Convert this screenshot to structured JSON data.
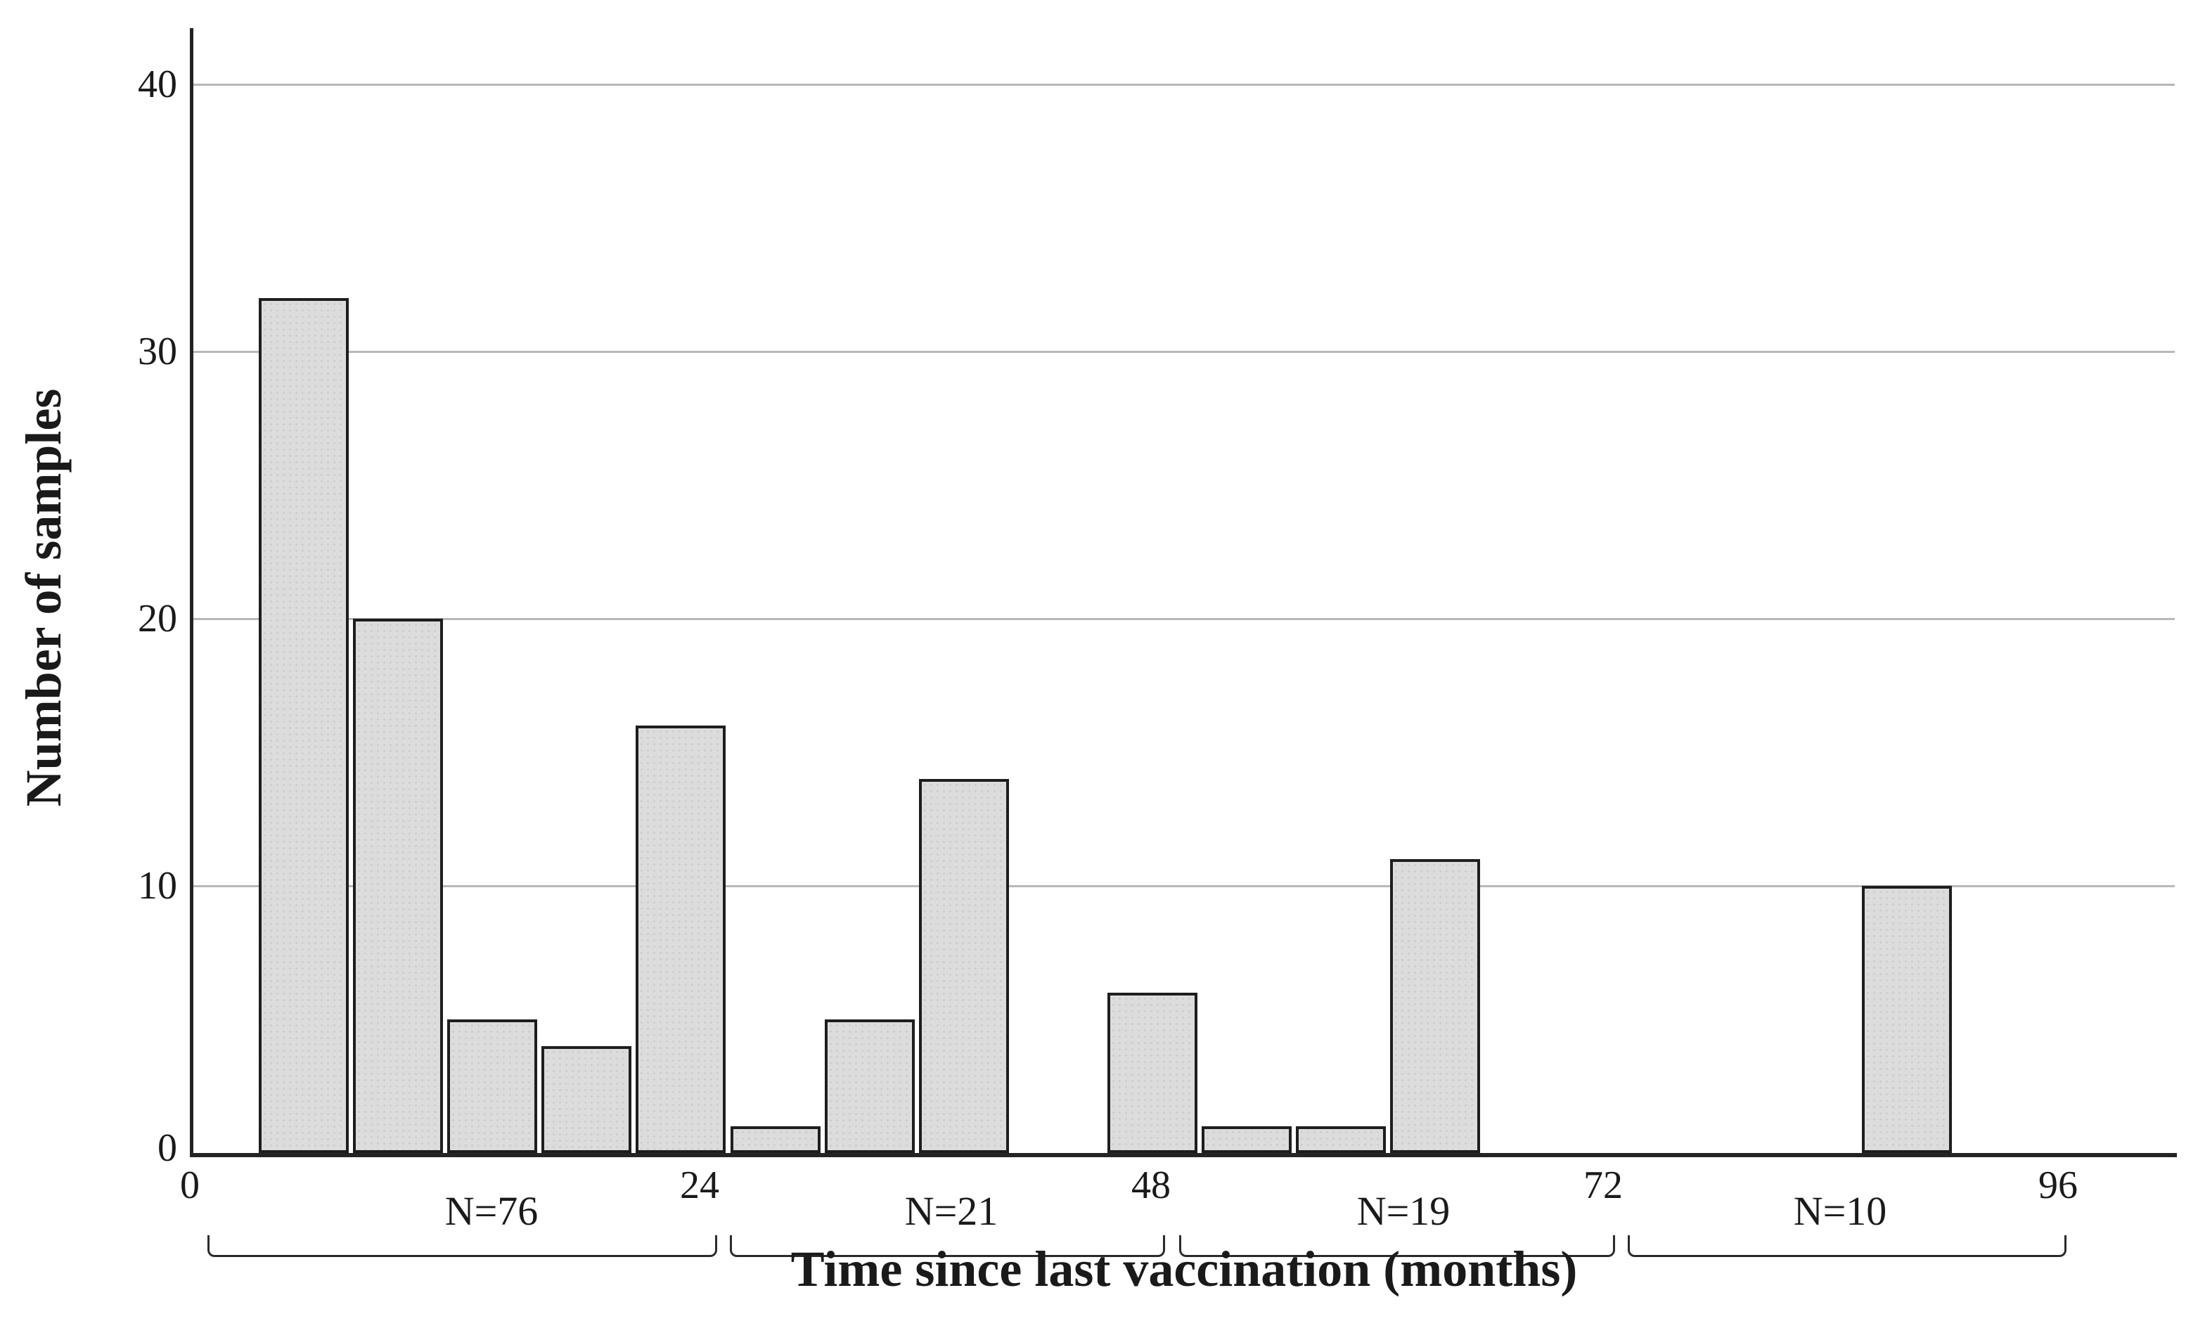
{
  "chart_data": {
    "type": "bar",
    "title": "",
    "xlabel": "Time since last vaccination (months)",
    "ylabel": "Number of samples",
    "x_ticks": [
      "0",
      "24",
      "48",
      "72",
      "96"
    ],
    "y_ticks": [
      "0",
      "10",
      "20",
      "30",
      "40"
    ],
    "ylim": [
      0,
      42
    ],
    "xlim_months": [
      0,
      96
    ],
    "grid": true,
    "legend": "none",
    "colors": {
      "bar_fill": "#dbdcdb",
      "bar_border": "#1e1e1e",
      "grid_color": "#b7b7b7",
      "axis_color": "#242424",
      "text_color": "#1a1a1a",
      "background": "#ffffff"
    },
    "bars": [
      {
        "slot": 0,
        "months_approx": "3.4-8.1",
        "value": 32
      },
      {
        "slot": 1,
        "months_approx": "8.3-12.9",
        "value": 20
      },
      {
        "slot": 2,
        "months_approx": "13.1-17.8",
        "value": 5
      },
      {
        "slot": 3,
        "months_approx": "18.0-22.6",
        "value": 4
      },
      {
        "slot": 4,
        "months_approx": "22.8-27.5",
        "value": 16
      },
      {
        "slot": 5,
        "months_approx": "27.7-32.3",
        "value": 1
      },
      {
        "slot": 6,
        "months_approx": "32.5-37.2",
        "value": 5
      },
      {
        "slot": 7,
        "months_approx": "37.4-42.0",
        "value": 14
      },
      {
        "slot": 9,
        "months_approx": "47.1-51.7",
        "value": 6
      },
      {
        "slot": 10,
        "months_approx": "51.9-56.6",
        "value": 1
      },
      {
        "slot": 11,
        "months_approx": "56.8-61.4",
        "value": 1
      },
      {
        "slot": 12,
        "months_approx": "61.6-66.3",
        "value": 11
      },
      {
        "slot": 17,
        "months_approx": "85.9-90.5",
        "value": 10
      }
    ],
    "groups": [
      {
        "label": "N=76",
        "months_range": "0-24"
      },
      {
        "label": "N=21",
        "months_range": "24-48"
      },
      {
        "label": "N=19",
        "months_range": "48-72"
      },
      {
        "label": "N=10",
        "months_range": "72-96"
      }
    ]
  }
}
